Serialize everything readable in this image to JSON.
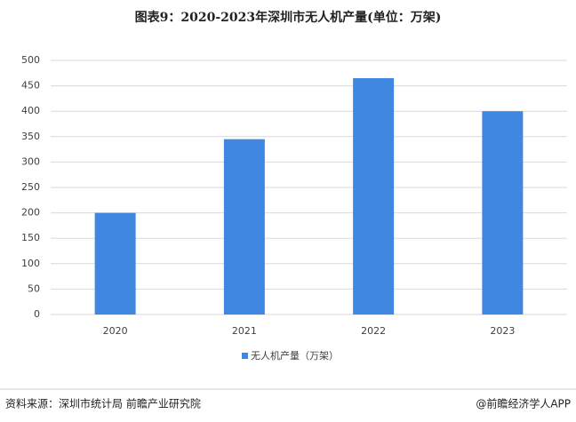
{
  "chart_data": {
    "type": "bar",
    "title": "图表9：2020-2023年深圳市无人机产量(单位：万架)",
    "categories": [
      "2020",
      "2021",
      "2022",
      "2023"
    ],
    "series": [
      {
        "name": "无人机产量（万架）",
        "color": "#3f87e0",
        "values": [
          200,
          345,
          465,
          400
        ]
      }
    ],
    "ylim": [
      0,
      500
    ],
    "yticks": [
      0,
      50,
      100,
      150,
      200,
      250,
      300,
      350,
      400,
      450,
      500
    ],
    "grid": true,
    "legend": "bottom",
    "source": "资料来源：深圳市统计局 前瞻产业研究院",
    "credit": "@前瞻经济学人APP"
  }
}
